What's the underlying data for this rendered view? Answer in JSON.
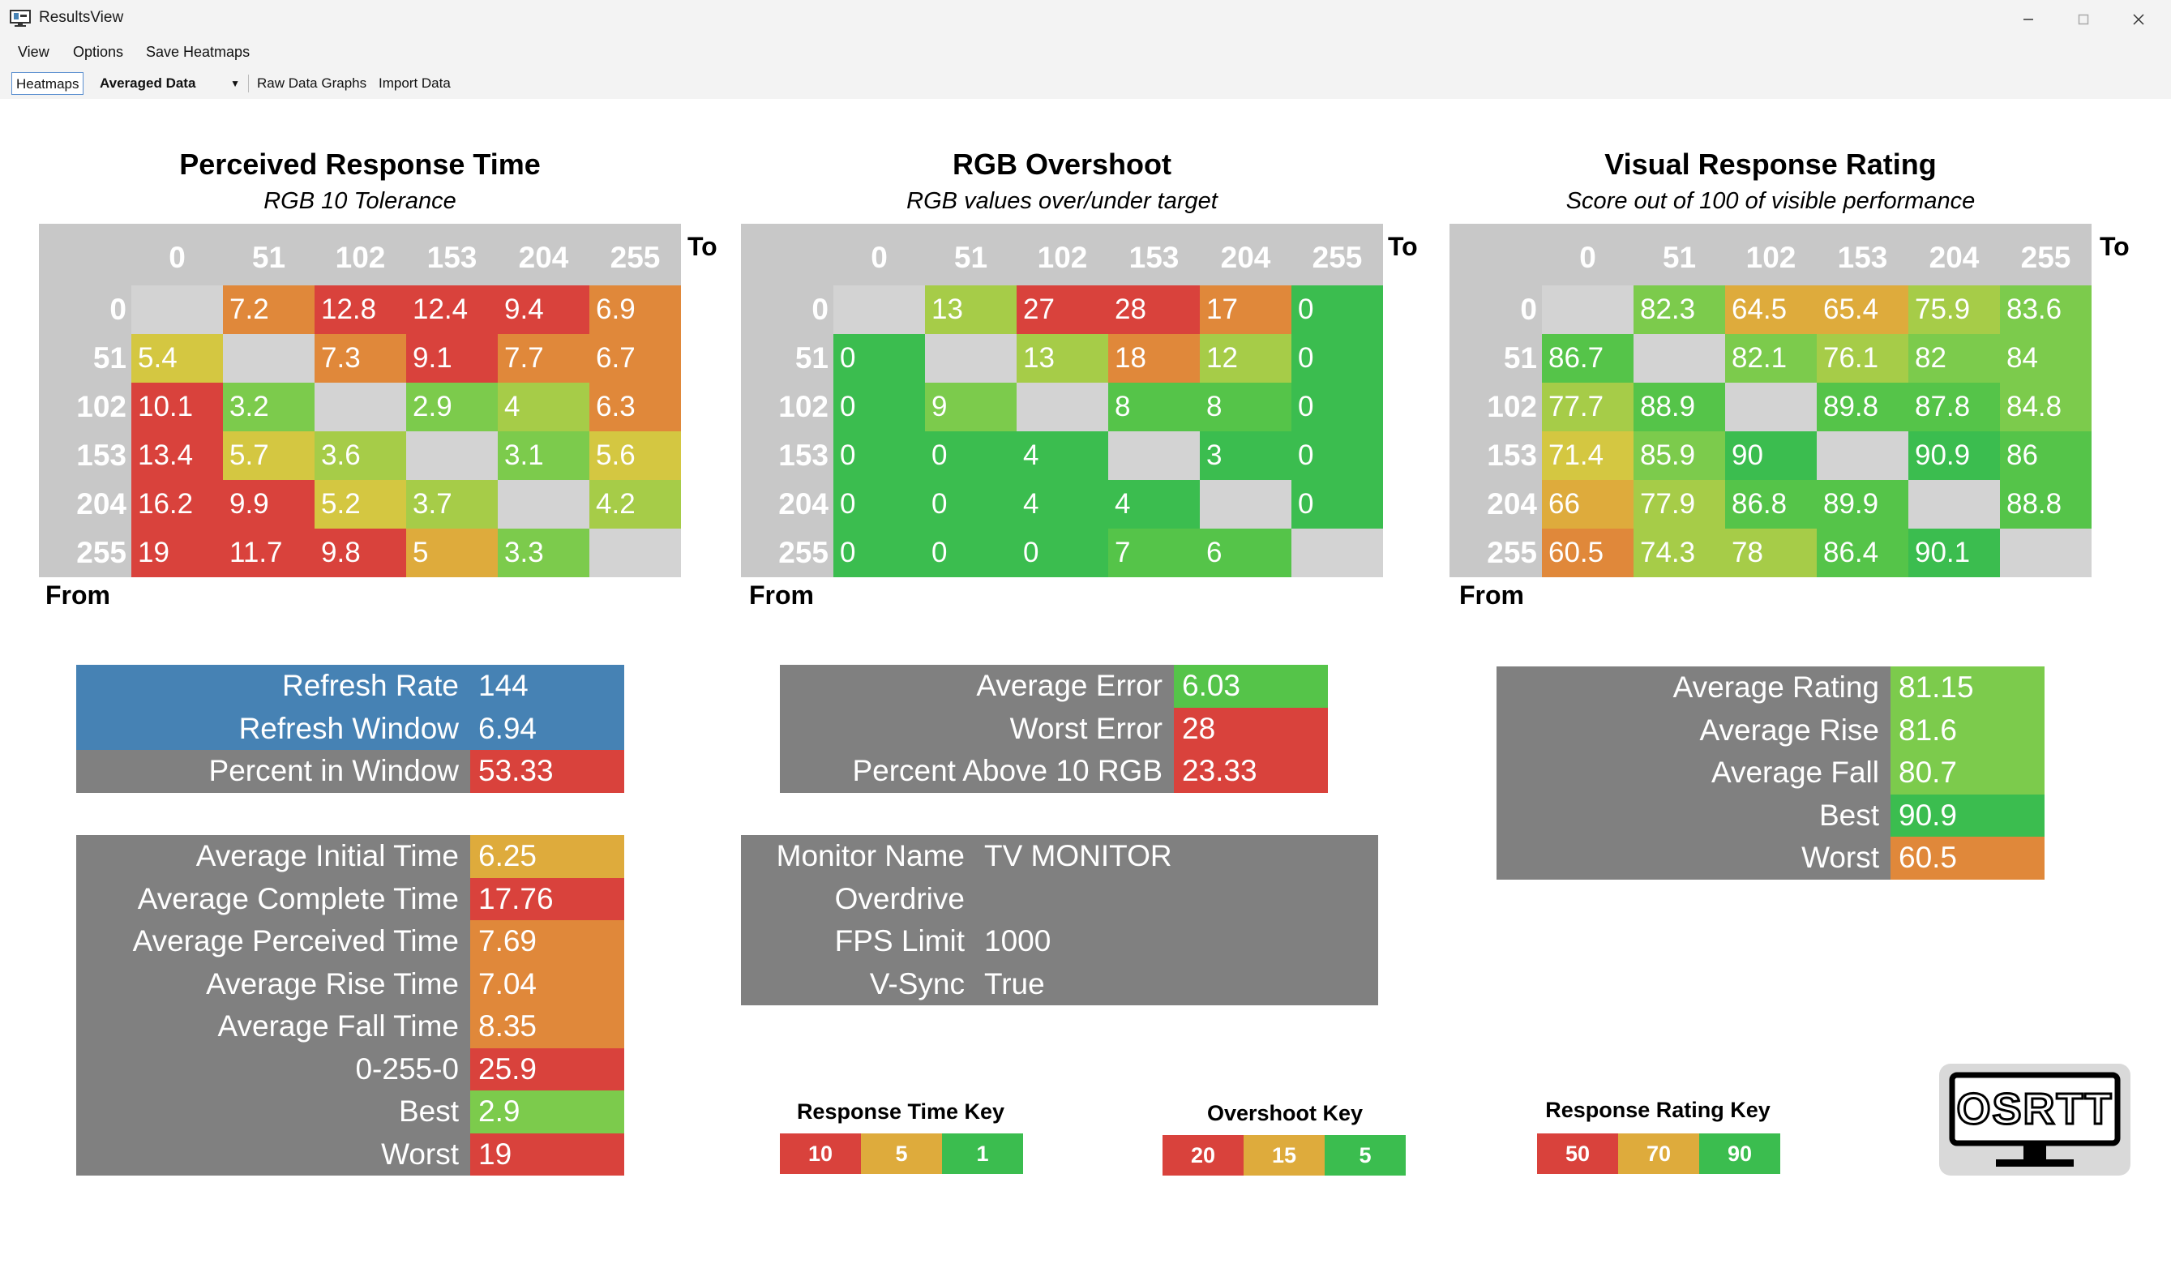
{
  "window": {
    "title": "ResultsView"
  },
  "menu": [
    "View",
    "Options",
    "Save Heatmaps"
  ],
  "toolbar": {
    "heatmaps": "Heatmaps",
    "averaged": "Averaged Data",
    "raw": "Raw Data Graphs",
    "import": "Import Data"
  },
  "colors": {
    "red": "#d9423c",
    "orange": "#e0883a",
    "yellow_orange": "#deab3c",
    "yellow": "#d4c741",
    "yellow_green": "#a6cc48",
    "light_green": "#7ccb4c",
    "green": "#55c449",
    "dark_green": "#3bbd4f",
    "blue": "#4682b4",
    "gray": "#808080",
    "empty": "#d3d3d3"
  },
  "heatmaps": [
    {
      "title": "Perceived Response Time",
      "subtitle": "RGB 10 Tolerance",
      "to_label": "To",
      "from_label": "From",
      "columns": [
        "0",
        "51",
        "102",
        "153",
        "204",
        "255"
      ],
      "rows": [
        {
          "label": "0",
          "values": [
            "",
            "7.2",
            "12.8",
            "12.4",
            "9.4",
            "6.9"
          ],
          "colors": [
            "empty",
            "orange",
            "red",
            "red",
            "red",
            "orange"
          ]
        },
        {
          "label": "51",
          "values": [
            "5.4",
            "",
            "7.3",
            "9.1",
            "7.7",
            "6.7"
          ],
          "colors": [
            "yellow",
            "empty",
            "orange",
            "red",
            "orange",
            "orange"
          ]
        },
        {
          "label": "102",
          "values": [
            "10.1",
            "3.2",
            "",
            "2.9",
            "4",
            "6.3"
          ],
          "colors": [
            "red",
            "light_green",
            "empty",
            "light_green",
            "yellow_green",
            "orange"
          ]
        },
        {
          "label": "153",
          "values": [
            "13.4",
            "5.7",
            "3.6",
            "",
            "3.1",
            "5.6"
          ],
          "colors": [
            "red",
            "yellow",
            "yellow_green",
            "empty",
            "light_green",
            "yellow"
          ]
        },
        {
          "label": "204",
          "values": [
            "16.2",
            "9.9",
            "5.2",
            "3.7",
            "",
            "4.2"
          ],
          "colors": [
            "red",
            "red",
            "yellow",
            "yellow_green",
            "empty",
            "yellow_green"
          ]
        },
        {
          "label": "255",
          "values": [
            "19",
            "11.7",
            "9.8",
            "5",
            "3.3",
            ""
          ],
          "colors": [
            "red",
            "red",
            "red",
            "yellow_orange",
            "light_green",
            "empty"
          ]
        }
      ]
    },
    {
      "title": "RGB Overshoot",
      "subtitle": "RGB values over/under target",
      "to_label": "To",
      "from_label": "From",
      "columns": [
        "0",
        "51",
        "102",
        "153",
        "204",
        "255"
      ],
      "rows": [
        {
          "label": "0",
          "values": [
            "",
            "13",
            "27",
            "28",
            "17",
            "0"
          ],
          "colors": [
            "empty",
            "yellow_green",
            "red",
            "red",
            "orange",
            "dark_green"
          ]
        },
        {
          "label": "51",
          "values": [
            "0",
            "",
            "13",
            "18",
            "12",
            "0"
          ],
          "colors": [
            "dark_green",
            "empty",
            "yellow_green",
            "orange",
            "yellow_green",
            "dark_green"
          ]
        },
        {
          "label": "102",
          "values": [
            "0",
            "9",
            "",
            "8",
            "8",
            "0"
          ],
          "colors": [
            "dark_green",
            "light_green",
            "empty",
            "green",
            "green",
            "dark_green"
          ]
        },
        {
          "label": "153",
          "values": [
            "0",
            "0",
            "4",
            "",
            "3",
            "0"
          ],
          "colors": [
            "dark_green",
            "dark_green",
            "dark_green",
            "empty",
            "dark_green",
            "dark_green"
          ]
        },
        {
          "label": "204",
          "values": [
            "0",
            "0",
            "4",
            "4",
            "",
            "0"
          ],
          "colors": [
            "dark_green",
            "dark_green",
            "dark_green",
            "dark_green",
            "empty",
            "dark_green"
          ]
        },
        {
          "label": "255",
          "values": [
            "0",
            "0",
            "0",
            "7",
            "6",
            ""
          ],
          "colors": [
            "dark_green",
            "dark_green",
            "dark_green",
            "green",
            "green",
            "empty"
          ]
        }
      ]
    },
    {
      "title": "Visual Response Rating",
      "subtitle": "Score out of 100 of visible performance",
      "to_label": "To",
      "from_label": "From",
      "columns": [
        "0",
        "51",
        "102",
        "153",
        "204",
        "255"
      ],
      "rows": [
        {
          "label": "0",
          "values": [
            "",
            "82.3",
            "64.5",
            "65.4",
            "75.9",
            "83.6"
          ],
          "colors": [
            "empty",
            "light_green",
            "yellow_orange",
            "yellow_orange",
            "yellow_green",
            "light_green"
          ]
        },
        {
          "label": "51",
          "values": [
            "86.7",
            "",
            "82.1",
            "76.1",
            "82",
            "84"
          ],
          "colors": [
            "green",
            "empty",
            "light_green",
            "yellow_green",
            "light_green",
            "light_green"
          ]
        },
        {
          "label": "102",
          "values": [
            "77.7",
            "88.9",
            "",
            "89.8",
            "87.8",
            "84.8"
          ],
          "colors": [
            "yellow_green",
            "green",
            "empty",
            "green",
            "green",
            "light_green"
          ]
        },
        {
          "label": "153",
          "values": [
            "71.4",
            "85.9",
            "90",
            "",
            "90.9",
            "86"
          ],
          "colors": [
            "yellow",
            "light_green",
            "dark_green",
            "empty",
            "dark_green",
            "green"
          ]
        },
        {
          "label": "204",
          "values": [
            "66",
            "77.9",
            "86.8",
            "89.9",
            "",
            "88.8"
          ],
          "colors": [
            "yellow_orange",
            "yellow_green",
            "green",
            "green",
            "empty",
            "green"
          ]
        },
        {
          "label": "255",
          "values": [
            "60.5",
            "74.3",
            "78",
            "86.4",
            "90.1",
            ""
          ],
          "colors": [
            "orange",
            "yellow_green",
            "yellow_green",
            "green",
            "dark_green",
            "empty"
          ]
        }
      ]
    }
  ],
  "panels": {
    "refresh": [
      {
        "label": "Refresh Rate",
        "value": "144",
        "label_color": "blue",
        "value_color": "blue"
      },
      {
        "label": "Refresh Window",
        "value": "6.94",
        "label_color": "blue",
        "value_color": "blue"
      },
      {
        "label": "Percent in Window",
        "value": "53.33",
        "label_color": "gray",
        "value_color": "red"
      }
    ],
    "times": [
      {
        "label": "Average Initial Time",
        "value": "6.25",
        "value_color": "yellow_orange"
      },
      {
        "label": "Average Complete Time",
        "value": "17.76",
        "value_color": "red"
      },
      {
        "label": "Average Perceived Time",
        "value": "7.69",
        "value_color": "orange"
      },
      {
        "label": "Average Rise Time",
        "value": "7.04",
        "value_color": "orange"
      },
      {
        "label": "Average Fall Time",
        "value": "8.35",
        "value_color": "orange"
      },
      {
        "label": "0-255-0",
        "value": "25.9",
        "value_color": "red"
      },
      {
        "label": "Best",
        "value": "2.9",
        "value_color": "light_green"
      },
      {
        "label": "Worst",
        "value": "19",
        "value_color": "red"
      }
    ],
    "overshoot": [
      {
        "label": "Average Error",
        "value": "6.03",
        "value_color": "green"
      },
      {
        "label": "Worst Error",
        "value": "28",
        "value_color": "red"
      },
      {
        "label": "Percent Above 10 RGB",
        "value": "23.33",
        "value_color": "red"
      }
    ],
    "monitor": [
      {
        "label": "Monitor Name",
        "value": "TV MONITOR",
        "value_color": "gray"
      },
      {
        "label": "Overdrive",
        "value": "",
        "value_color": "gray"
      },
      {
        "label": "FPS Limit",
        "value": "1000",
        "value_color": "gray"
      },
      {
        "label": "V-Sync",
        "value": "True",
        "value_color": "gray"
      }
    ],
    "rating": [
      {
        "label": "Average Rating",
        "value": "81.15",
        "value_color": "light_green"
      },
      {
        "label": "Average Rise",
        "value": "81.6",
        "value_color": "light_green"
      },
      {
        "label": "Average Fall",
        "value": "80.7",
        "value_color": "light_green"
      },
      {
        "label": "Best",
        "value": "90.9",
        "value_color": "dark_green"
      },
      {
        "label": "Worst",
        "value": "60.5",
        "value_color": "orange"
      }
    ]
  },
  "keys": [
    {
      "title": "Response Time Key",
      "items": [
        {
          "label": "10",
          "color": "red"
        },
        {
          "label": "5",
          "color": "yellow_orange"
        },
        {
          "label": "1",
          "color": "dark_green"
        }
      ]
    },
    {
      "title": "Overshoot Key",
      "items": [
        {
          "label": "20",
          "color": "red"
        },
        {
          "label": "15",
          "color": "yellow_orange"
        },
        {
          "label": "5",
          "color": "dark_green"
        }
      ]
    },
    {
      "title": "Response Rating Key",
      "items": [
        {
          "label": "50",
          "color": "red"
        },
        {
          "label": "70",
          "color": "yellow_orange"
        },
        {
          "label": "90",
          "color": "dark_green"
        }
      ]
    }
  ],
  "logo": {
    "text": "OSRTT",
    "icon": "monitor-icon"
  }
}
